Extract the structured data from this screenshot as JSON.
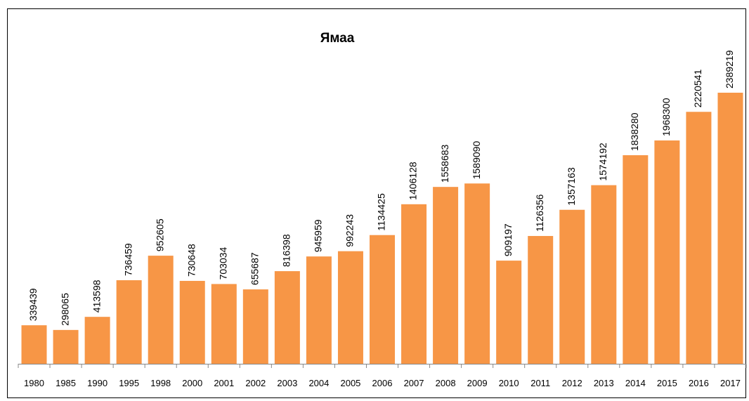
{
  "chart_data": {
    "type": "bar",
    "title": "Ямаа",
    "categories": [
      "1980",
      "1985",
      "1990",
      "1995",
      "1998",
      "2000",
      "2001",
      "2002",
      "2003",
      "2004",
      "2005",
      "2006",
      "2007",
      "2008",
      "2009",
      "2010",
      "2011",
      "2012",
      "2013",
      "2014",
      "2015",
      "2016",
      "2017"
    ],
    "values": [
      339439,
      298065,
      413598,
      736459,
      952605,
      730648,
      703034,
      655687,
      816398,
      945959,
      992243,
      1134425,
      1406128,
      1558683,
      1589090,
      909197,
      1126356,
      1357163,
      1574192,
      1838280,
      1968300,
      2220541,
      2389219
    ],
    "color": "#f79646"
  }
}
